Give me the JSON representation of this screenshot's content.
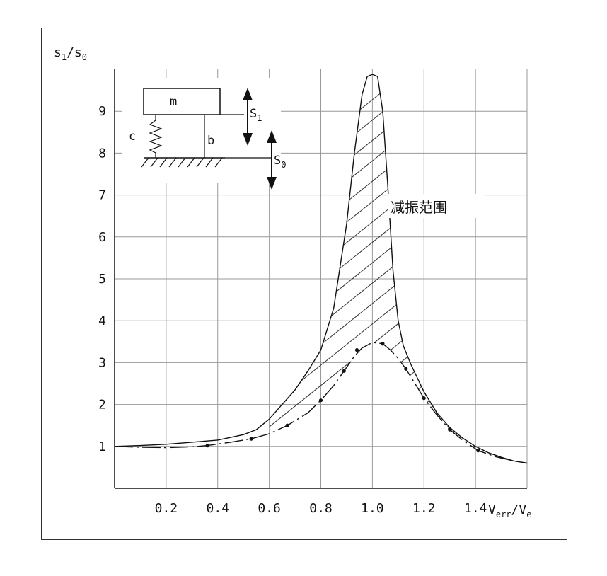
{
  "chart_data": {
    "type": "line",
    "title": "",
    "ylabel": {
      "main": "s",
      "sub1": "1",
      "sep": "/s",
      "sub2": "0"
    },
    "xlabel": {
      "main": "V",
      "sub1": "err",
      "sep": "/V",
      "sub2": "e"
    },
    "xlim": [
      0,
      1.6
    ],
    "ylim": [
      0,
      10
    ],
    "x_ticks": [
      "0.2",
      "0.4",
      "0.6",
      "0.8",
      "1.0",
      "1.2",
      "1.4"
    ],
    "x_tick_values": [
      0.2,
      0.4,
      0.6,
      0.8,
      1.0,
      1.2,
      1.4
    ],
    "y_ticks": [
      "1",
      "2",
      "3",
      "4",
      "5",
      "6",
      "7",
      "8",
      "9"
    ],
    "y_tick_values": [
      1,
      2,
      3,
      4,
      5,
      6,
      7,
      8,
      9
    ],
    "grid": true,
    "series": [
      {
        "style": "solid",
        "x": [
          0,
          0.1,
          0.2,
          0.3,
          0.4,
          0.5,
          0.55,
          0.6,
          0.65,
          0.7,
          0.75,
          0.8,
          0.85,
          0.9,
          0.93,
          0.96,
          0.98,
          1.0,
          1.02,
          1.04,
          1.06,
          1.08,
          1.1,
          1.12,
          1.15,
          1.2,
          1.25,
          1.3,
          1.35,
          1.4,
          1.45,
          1.5,
          1.55,
          1.6
        ],
        "y": [
          1.0,
          1.02,
          1.05,
          1.1,
          1.15,
          1.28,
          1.4,
          1.65,
          2.0,
          2.35,
          2.8,
          3.3,
          4.3,
          6.3,
          8.0,
          9.4,
          9.83,
          9.88,
          9.83,
          9.0,
          7.2,
          5.2,
          4.0,
          3.4,
          2.95,
          2.3,
          1.8,
          1.45,
          1.2,
          1.0,
          0.85,
          0.74,
          0.65,
          0.6
        ]
      },
      {
        "style": "dash-dot",
        "x": [
          0,
          0.1,
          0.2,
          0.3,
          0.36,
          0.45,
          0.53,
          0.6,
          0.67,
          0.75,
          0.8,
          0.85,
          0.89,
          0.93,
          0.96,
          1.0,
          1.04,
          1.07,
          1.1,
          1.13,
          1.16,
          1.2,
          1.25,
          1.3,
          1.35,
          1.41,
          1.48,
          1.55,
          1.6
        ],
        "y": [
          1.0,
          0.98,
          0.97,
          0.99,
          1.02,
          1.1,
          1.18,
          1.3,
          1.5,
          1.8,
          2.1,
          2.45,
          2.8,
          3.15,
          3.35,
          3.48,
          3.45,
          3.3,
          3.1,
          2.85,
          2.55,
          2.15,
          1.75,
          1.4,
          1.15,
          0.9,
          0.75,
          0.65,
          0.6
        ]
      }
    ],
    "markers": {
      "x": [
        0.36,
        0.53,
        0.67,
        0.8,
        0.89,
        0.94,
        1.04,
        1.13,
        1.2,
        1.3,
        1.41
      ],
      "y": [
        1.02,
        1.18,
        1.5,
        2.1,
        2.8,
        3.3,
        3.45,
        2.85,
        2.15,
        1.4,
        0.9
      ]
    },
    "hatch_region_label": "减振范围"
  },
  "inset": {
    "mass_label": "m",
    "spring_label": "c",
    "damper_label": "b",
    "s1_label": {
      "main": "S",
      "sub": "1"
    },
    "s0_label": {
      "main": "S",
      "sub": "0"
    }
  }
}
